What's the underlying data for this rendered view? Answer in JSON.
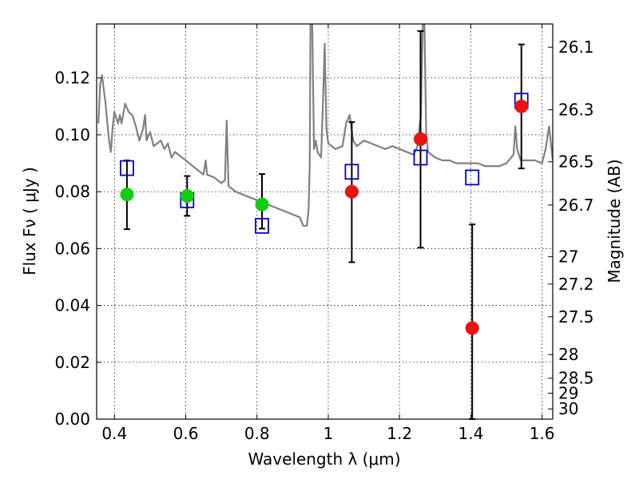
{
  "chart_data": {
    "type": "scatter",
    "title": "",
    "xlabel": "Wavelength  λ (μm)",
    "ylabel": "Flux  Fν  ( μJy )",
    "ylabel_right": "Magnitude (AB)",
    "xlim": [
      0.35,
      1.63
    ],
    "ylim": [
      0.0,
      0.139
    ],
    "grid": true,
    "x_ticks": [
      0.4,
      0.6,
      0.8,
      1.0,
      1.2,
      1.4,
      1.6
    ],
    "x_tick_labels": [
      "0.4",
      "0.6",
      "0.8",
      "1",
      "1.2",
      "1.4",
      "1.6"
    ],
    "y_ticks": [
      0.0,
      0.02,
      0.04,
      0.06,
      0.08,
      0.1,
      0.12
    ],
    "y_tick_labels": [
      "0.00",
      "0.02",
      "0.04",
      "0.06",
      "0.08",
      "0.10",
      "0.12"
    ],
    "right_ticks": [
      {
        "label": "26.1",
        "flux": 0.1308
      },
      {
        "label": "26.3",
        "flux": 0.1088
      },
      {
        "label": "26.5",
        "flux": 0.0905
      },
      {
        "label": "26.7",
        "flux": 0.0753
      },
      {
        "label": "27",
        "flux": 0.0571
      },
      {
        "label": "27.2",
        "flux": 0.0475
      },
      {
        "label": "27.5",
        "flux": 0.036
      },
      {
        "label": "28",
        "flux": 0.0227
      },
      {
        "label": "28.5",
        "flux": 0.0144
      },
      {
        "label": "29",
        "flux": 0.0091
      },
      {
        "label": "30",
        "flux": 0.0036
      }
    ],
    "series": [
      {
        "kind": "spectrum",
        "color": "#808080",
        "x": [
          0.355,
          0.36,
          0.365,
          0.37,
          0.375,
          0.38,
          0.385,
          0.39,
          0.395,
          0.4,
          0.405,
          0.41,
          0.415,
          0.42,
          0.43,
          0.44,
          0.45,
          0.46,
          0.47,
          0.48,
          0.486,
          0.49,
          0.5,
          0.51,
          0.52,
          0.53,
          0.54,
          0.55,
          0.56,
          0.57,
          0.58,
          0.59,
          0.6,
          0.62,
          0.64,
          0.65,
          0.656,
          0.66,
          0.68,
          0.7,
          0.71,
          0.715,
          0.72,
          0.74,
          0.76,
          0.78,
          0.8,
          0.82,
          0.84,
          0.86,
          0.88,
          0.9,
          0.92,
          0.93,
          0.94,
          0.945,
          0.948,
          0.95,
          0.955,
          0.96,
          0.965,
          0.97,
          0.98,
          0.985,
          0.99,
          0.995,
          1.0,
          1.02,
          1.04,
          1.05,
          1.06,
          1.07,
          1.08,
          1.09,
          1.1,
          1.12,
          1.14,
          1.16,
          1.18,
          1.2,
          1.22,
          1.24,
          1.25,
          1.26,
          1.265,
          1.27,
          1.275,
          1.28,
          1.29,
          1.3,
          1.32,
          1.34,
          1.36,
          1.38,
          1.4,
          1.42,
          1.44,
          1.46,
          1.48,
          1.5,
          1.52,
          1.525,
          1.53,
          1.54,
          1.56,
          1.58,
          1.6,
          1.61,
          1.62,
          1.63
        ],
        "y": [
          0.104,
          0.118,
          0.121,
          0.116,
          0.111,
          0.104,
          0.098,
          0.094,
          0.103,
          0.108,
          0.106,
          0.104,
          0.107,
          0.104,
          0.111,
          0.108,
          0.107,
          0.103,
          0.098,
          0.102,
          0.107,
          0.098,
          0.101,
          0.096,
          0.097,
          0.098,
          0.095,
          0.097,
          0.092,
          0.094,
          0.093,
          0.092,
          0.091,
          0.089,
          0.087,
          0.086,
          0.091,
          0.086,
          0.085,
          0.083,
          0.084,
          0.105,
          0.082,
          0.08,
          0.079,
          0.078,
          0.077,
          0.076,
          0.075,
          0.074,
          0.073,
          0.072,
          0.071,
          0.068,
          0.068,
          0.074,
          0.09,
          0.139,
          0.139,
          0.095,
          0.098,
          0.094,
          0.092,
          0.111,
          0.132,
          0.102,
          0.097,
          0.095,
          0.096,
          0.104,
          0.107,
          0.098,
          0.096,
          0.097,
          0.098,
          0.097,
          0.096,
          0.095,
          0.096,
          0.095,
          0.094,
          0.093,
          0.096,
          0.107,
          0.139,
          0.139,
          0.1,
          0.094,
          0.093,
          0.092,
          0.091,
          0.091,
          0.09,
          0.09,
          0.09,
          0.09,
          0.089,
          0.089,
          0.089,
          0.09,
          0.093,
          0.103,
          0.095,
          0.091,
          0.091,
          0.091,
          0.09,
          0.095,
          0.103,
          0.091
        ]
      },
      {
        "kind": "model-photometry",
        "marker": "open-square",
        "color": "#0000cc",
        "x": [
          0.435,
          0.604,
          0.814,
          1.066,
          1.259,
          1.404,
          1.542
        ],
        "y": [
          0.0883,
          0.077,
          0.068,
          0.087,
          0.092,
          0.085,
          0.112
        ]
      },
      {
        "kind": "observed-ground",
        "marker": "filled-circle",
        "color": "#11cc11",
        "x": [
          0.435,
          0.604,
          0.814
        ],
        "y": [
          0.079,
          0.0785,
          0.0755
        ],
        "yerr_low": [
          0.0668,
          0.0715,
          0.067
        ],
        "yerr_high": [
          0.091,
          0.0855,
          0.0862
        ]
      },
      {
        "kind": "observed-nir",
        "marker": "filled-circle",
        "color": "#ee1111",
        "x": [
          1.066,
          1.259,
          1.404,
          1.542
        ],
        "y": [
          0.08,
          0.0985,
          0.032,
          0.11
        ],
        "yerr_low": [
          0.0552,
          0.0603,
          0.0,
          0.0882
        ],
        "yerr_high": [
          0.1045,
          0.1365,
          0.0685,
          0.1318
        ]
      }
    ]
  }
}
